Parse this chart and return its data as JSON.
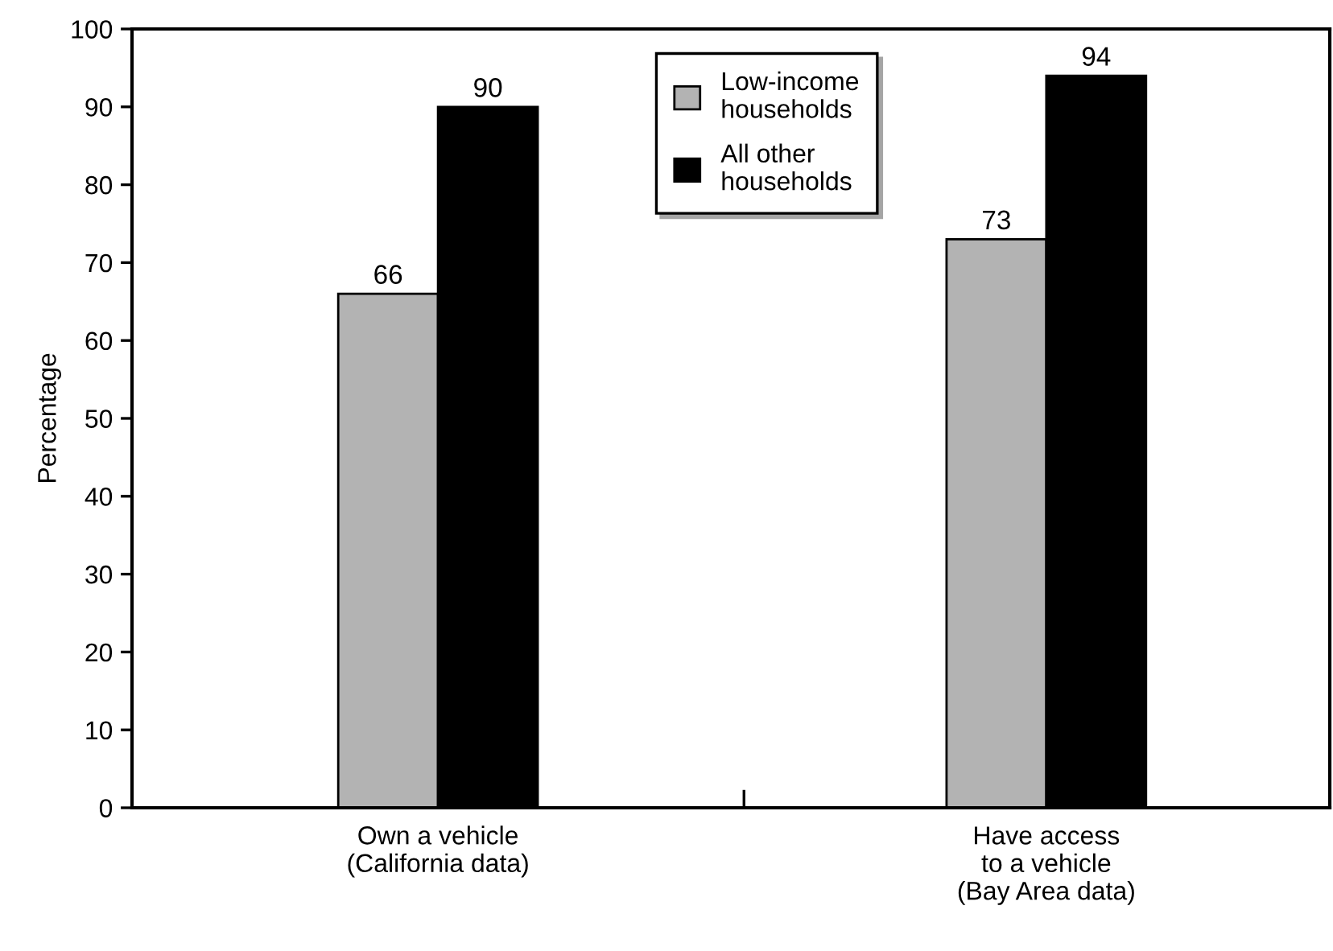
{
  "chart_data": {
    "type": "bar",
    "ylabel": "Percentage",
    "categories": [
      "Own a vehicle\n(California data)",
      "Have access\nto a vehicle\n(Bay Area data)"
    ],
    "series": [
      {
        "name": "Low-income\nhouseholds",
        "color": "#b3b3b3",
        "values": [
          66,
          73
        ]
      },
      {
        "name": "All other\nhouseholds",
        "color": "#000000",
        "values": [
          90,
          94
        ]
      }
    ],
    "ylim": [
      0,
      100
    ],
    "yticks": [
      0,
      10,
      20,
      30,
      40,
      50,
      60,
      70,
      80,
      90,
      100
    ],
    "data_labels": true,
    "legend": "top",
    "grid": false
  }
}
